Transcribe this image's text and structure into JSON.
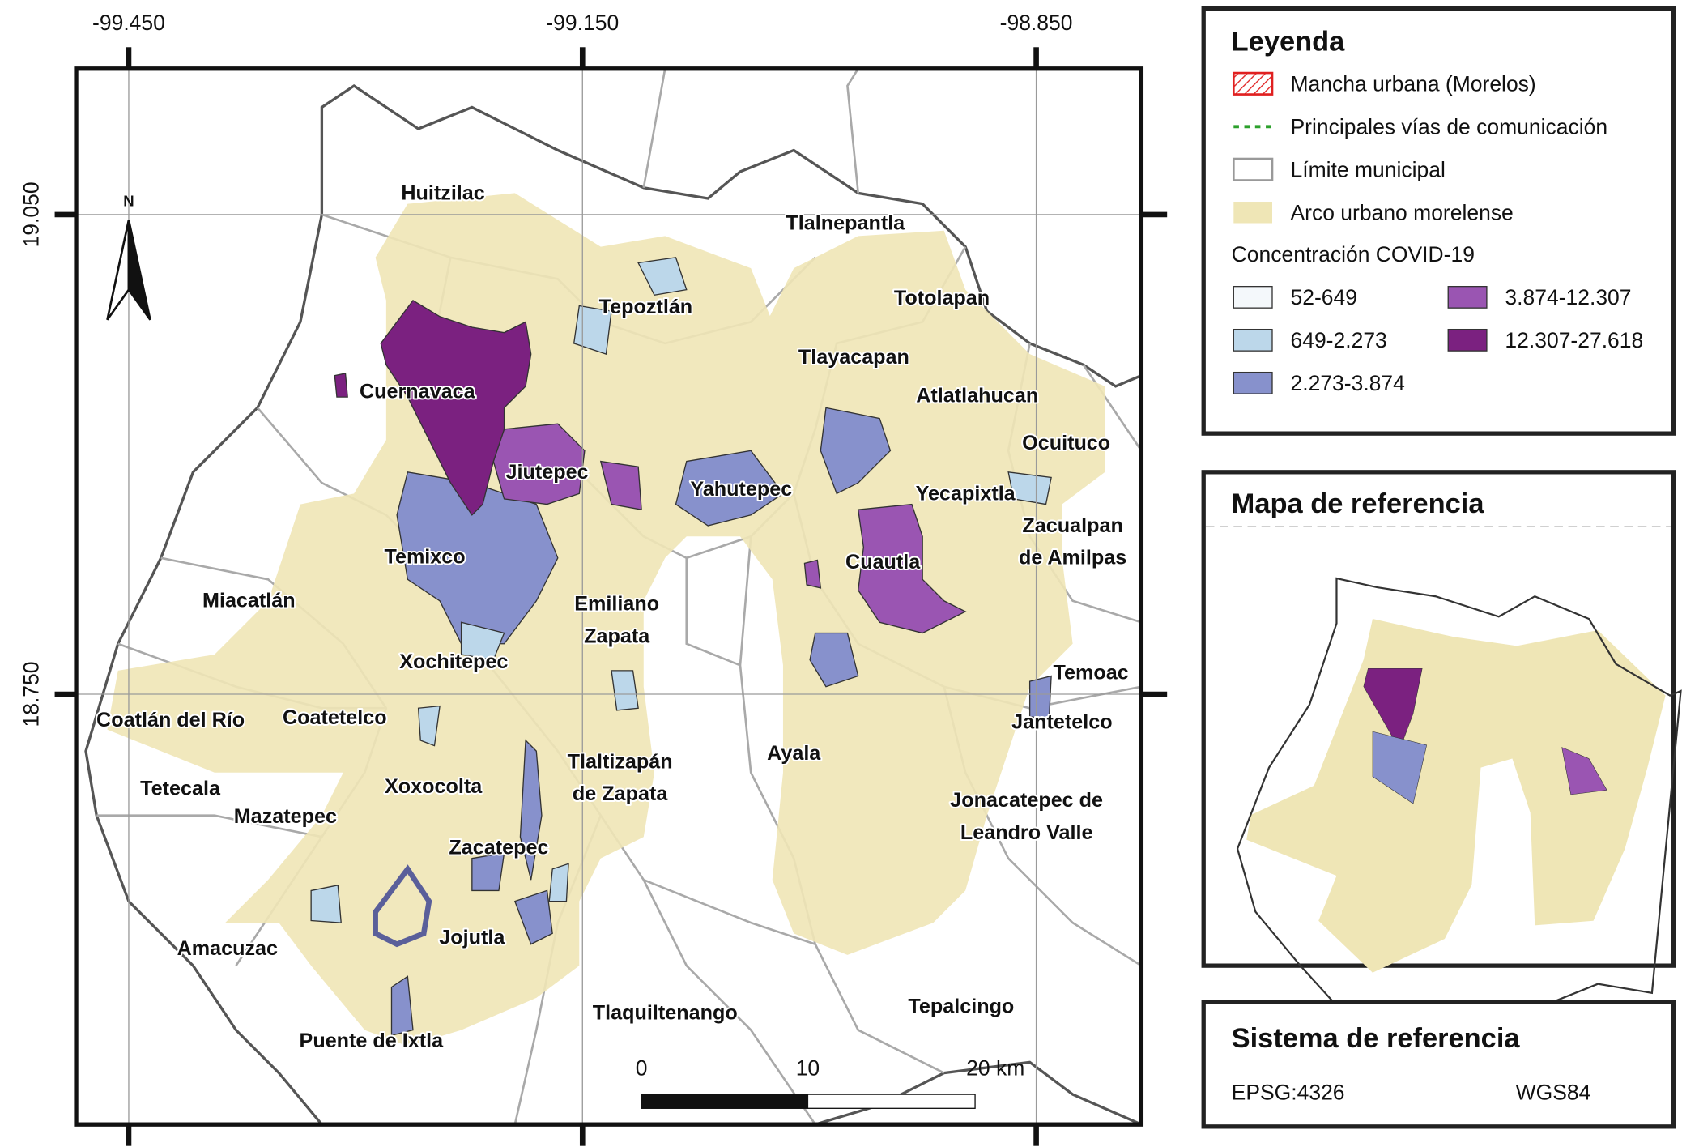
{
  "map": {
    "x_labels": [
      "-99.450",
      "-99.150",
      "-98.850"
    ],
    "y_labels": [
      "19.050",
      "18.750"
    ],
    "north": "N",
    "municipalities": [
      [
        "Huitzilac"
      ],
      [
        "Tlalnepantla"
      ],
      [
        "Totolapan"
      ],
      [
        "Tepoztlán"
      ],
      [
        "Tlayacapan"
      ],
      [
        "Cuernavaca"
      ],
      [
        "Atlatlahucan"
      ],
      [
        "Ocuituco"
      ],
      [
        "Jiutepec"
      ],
      [
        "Yahutepec"
      ],
      [
        "Yecapixtla"
      ],
      [
        "Zacualpan",
        "de Amilpas"
      ],
      [
        "Temixco"
      ],
      [
        "Cuautla"
      ],
      [
        "Miacatlán"
      ],
      [
        "Emiliano",
        "Zapata"
      ],
      [
        "Xochitepec"
      ],
      [
        "Temoac"
      ],
      [
        "Coatlán del Río"
      ],
      [
        "Coatetelco"
      ],
      [
        "Jantetelco"
      ],
      [
        "Ayala"
      ],
      [
        "Tlaltizapán",
        "de Zapata"
      ],
      [
        "Tetecala"
      ],
      [
        "Xoxocolta"
      ],
      [
        "Mazatepec"
      ],
      [
        "Jonacatepec de",
        "Leandro Valle"
      ],
      [
        "Zacatepec"
      ],
      [
        "Jojutla"
      ],
      [
        "Amacuzac"
      ],
      [
        "Tepalcingo"
      ],
      [
        "Tlaquiltenango"
      ],
      [
        "Puente de Ixtla"
      ]
    ],
    "scale": [
      "0",
      "10",
      "20 km"
    ]
  },
  "legend": {
    "title": "Leyenda",
    "items": [
      "Mancha urbana (Morelos)",
      "Principales vías de comunicación",
      "Límite municipal",
      "Arco urbano morelense"
    ],
    "covid_title": "Concentración COVID-19",
    "classes": [
      "52-649",
      "649-2.273",
      "2.273-3.874",
      "3.874-12.307",
      "12.307-27.618"
    ]
  },
  "reference_map": {
    "title": "Mapa de referencia"
  },
  "reference_system": {
    "title": "Sistema de referencia",
    "code": "EPSG:4326",
    "datum": "WGS84"
  }
}
